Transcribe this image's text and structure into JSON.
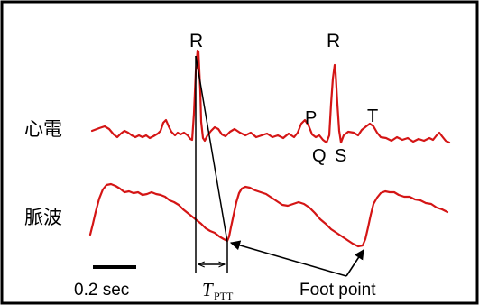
{
  "labels": {
    "ecg_row": "心電",
    "pulse_row": "脈波",
    "r_peak_1": "R",
    "r_peak_2": "R",
    "p_wave": "P",
    "q_wave": "Q",
    "s_wave": "S",
    "t_wave": "T",
    "scale_bar": "0.2 sec",
    "ptt_main": "T",
    "ptt_sub": "PTT",
    "foot_point": "Foot point"
  },
  "colors": {
    "trace": "#d41515",
    "frame": "#000000",
    "annotation": "#000000"
  }
}
